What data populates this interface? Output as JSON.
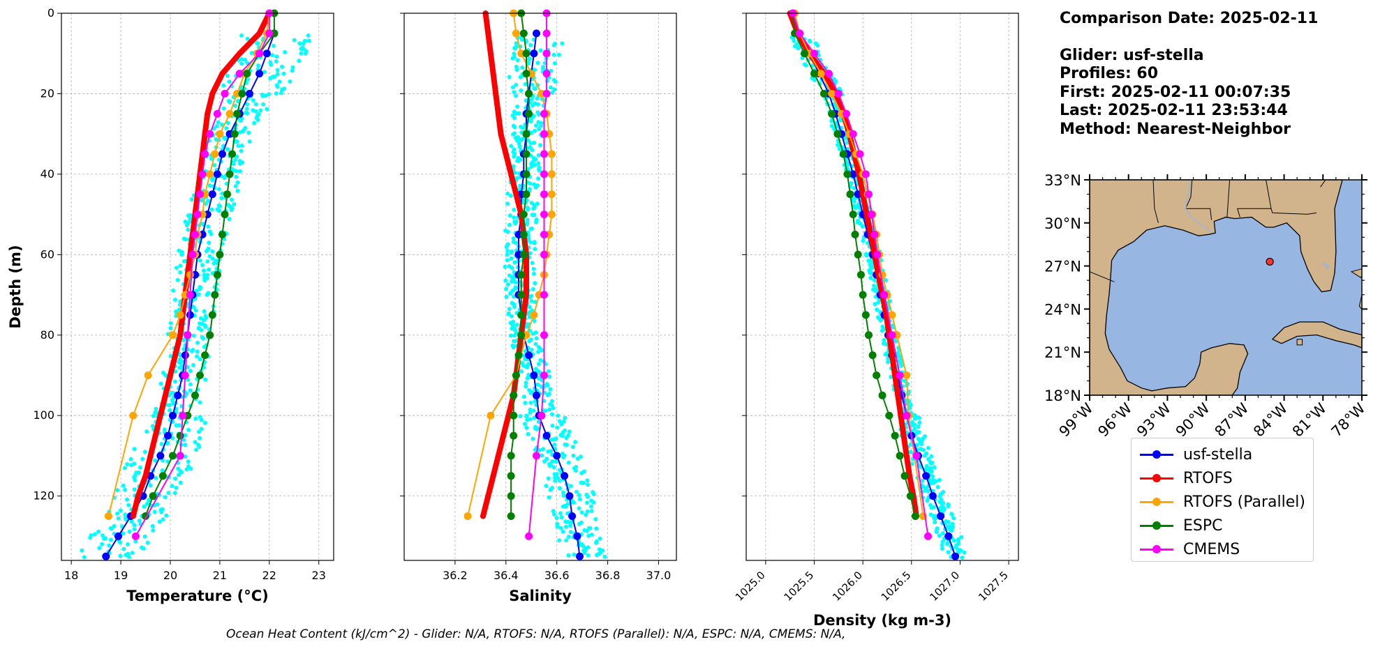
{
  "chart_data": [
    {
      "type": "line",
      "xlabel": "Temperature (°C)",
      "ylabel": "Depth (m)",
      "xlim": [
        17.8,
        23.3
      ],
      "ylim": [
        136,
        0
      ],
      "xticks": [
        "18",
        "19",
        "20",
        "21",
        "22",
        "23"
      ],
      "yticks": [
        "0",
        "20",
        "40",
        "60",
        "80",
        "100",
        "120"
      ],
      "grid": true,
      "series": [
        {
          "name": "usf-stella",
          "color": "#0000ff",
          "depth": [
            5,
            10,
            15,
            20,
            25,
            30,
            35,
            40,
            45,
            50,
            55,
            60,
            65,
            70,
            75,
            80,
            85,
            90,
            95,
            100,
            105,
            110,
            115,
            120,
            125,
            130,
            135
          ],
          "values": [
            22.1,
            21.95,
            21.8,
            21.6,
            21.4,
            21.2,
            21.05,
            20.95,
            20.85,
            20.75,
            20.65,
            20.55,
            20.5,
            20.45,
            20.4,
            20.35,
            20.3,
            20.25,
            20.15,
            20.05,
            19.95,
            19.8,
            19.6,
            19.45,
            19.2,
            18.95,
            18.7
          ]
        },
        {
          "name": "RTOFS",
          "color": "#ff0000",
          "depth": [
            0,
            5,
            10,
            15,
            20,
            25,
            30,
            35,
            40,
            45,
            50,
            55,
            60,
            65,
            70,
            75,
            80,
            85,
            90,
            95,
            100,
            105,
            110,
            115,
            120,
            125
          ],
          "values": [
            22.0,
            21.8,
            21.4,
            21.05,
            20.85,
            20.75,
            20.7,
            20.65,
            20.6,
            20.55,
            20.5,
            20.45,
            20.4,
            20.35,
            20.3,
            20.25,
            20.2,
            20.1,
            20.0,
            19.9,
            19.8,
            19.7,
            19.6,
            19.5,
            19.35,
            19.25
          ]
        },
        {
          "name": "RTOFS (Parallel)",
          "color": "#ffa500",
          "depth": [
            0,
            5,
            10,
            15,
            20,
            25,
            30,
            35,
            40,
            45,
            50,
            55,
            60,
            65,
            70,
            75,
            80,
            90,
            100,
            125
          ],
          "values": [
            22.0,
            21.95,
            21.75,
            21.5,
            21.35,
            21.2,
            21.0,
            20.9,
            20.8,
            20.7,
            20.65,
            20.55,
            20.5,
            20.4,
            20.3,
            20.2,
            20.05,
            19.55,
            19.25,
            18.75
          ]
        },
        {
          "name": "ESPC",
          "color": "#008000",
          "depth": [
            0,
            5,
            10,
            15,
            20,
            25,
            30,
            35,
            40,
            45,
            50,
            55,
            60,
            65,
            70,
            75,
            80,
            85,
            90,
            95,
            100,
            105,
            110,
            115,
            120,
            125
          ],
          "values": [
            22.1,
            22.1,
            21.8,
            21.55,
            21.45,
            21.35,
            21.3,
            21.25,
            21.2,
            21.15,
            21.1,
            21.05,
            21.0,
            20.95,
            20.9,
            20.85,
            20.8,
            20.7,
            20.6,
            20.5,
            20.35,
            20.2,
            20.05,
            19.85,
            19.65,
            19.5
          ]
        },
        {
          "name": "CMEMS",
          "color": "#ff00ff",
          "depth": [
            0,
            5,
            10,
            15,
            20,
            25,
            30,
            35,
            40,
            45,
            50,
            55,
            60,
            70,
            80,
            90,
            100,
            110,
            130
          ],
          "values": [
            22.0,
            22.0,
            21.8,
            21.4,
            21.1,
            20.95,
            20.8,
            20.7,
            20.65,
            20.6,
            20.55,
            20.5,
            20.45,
            20.4,
            20.35,
            20.3,
            20.25,
            20.2,
            19.3
          ]
        }
      ]
    },
    {
      "type": "line",
      "xlabel": "Salinity",
      "xlim": [
        36.0,
        37.07
      ],
      "ylim": [
        136,
        0
      ],
      "xticks": [
        "36.2",
        "36.4",
        "36.6",
        "36.8",
        "37.0"
      ],
      "grid": true,
      "series": [
        {
          "name": "usf-stella",
          "color": "#0000ff",
          "depth": [
            5,
            10,
            15,
            20,
            25,
            30,
            35,
            40,
            45,
            50,
            55,
            60,
            65,
            70,
            75,
            80,
            85,
            90,
            95,
            100,
            105,
            110,
            115,
            120,
            125,
            130,
            135
          ],
          "values": [
            36.52,
            36.51,
            36.5,
            36.49,
            36.48,
            36.48,
            36.47,
            36.47,
            36.46,
            36.46,
            36.45,
            36.45,
            36.45,
            36.45,
            36.46,
            36.47,
            36.49,
            36.51,
            36.52,
            36.53,
            36.56,
            36.6,
            36.63,
            36.65,
            36.66,
            36.68,
            36.69
          ]
        },
        {
          "name": "RTOFS",
          "color": "#ff0000",
          "depth": [
            0,
            5,
            10,
            15,
            20,
            25,
            30,
            35,
            40,
            45,
            50,
            55,
            60,
            65,
            70,
            75,
            80,
            85,
            90,
            95,
            100,
            105,
            110,
            115,
            120,
            125
          ],
          "values": [
            36.32,
            36.33,
            36.34,
            36.35,
            36.36,
            36.37,
            36.38,
            36.4,
            36.42,
            36.44,
            36.46,
            36.47,
            36.48,
            36.48,
            36.48,
            36.47,
            36.46,
            36.45,
            36.44,
            36.43,
            36.41,
            36.39,
            36.37,
            36.35,
            36.33,
            36.31
          ]
        },
        {
          "name": "RTOFS (Parallel)",
          "color": "#ffa500",
          "depth": [
            0,
            5,
            10,
            15,
            20,
            25,
            30,
            35,
            40,
            45,
            50,
            55,
            60,
            65,
            70,
            75,
            80,
            90,
            100,
            125
          ],
          "values": [
            36.43,
            36.44,
            36.46,
            36.5,
            36.54,
            36.56,
            36.57,
            36.58,
            36.58,
            36.58,
            36.58,
            36.57,
            36.56,
            36.55,
            36.53,
            36.51,
            36.48,
            36.44,
            36.34,
            36.25
          ]
        },
        {
          "name": "ESPC",
          "color": "#008000",
          "depth": [
            0,
            5,
            10,
            15,
            20,
            25,
            30,
            35,
            40,
            45,
            50,
            55,
            60,
            65,
            70,
            75,
            80,
            85,
            90,
            95,
            100,
            105,
            110,
            115,
            120,
            125
          ],
          "values": [
            36.46,
            36.47,
            36.48,
            36.48,
            36.49,
            36.49,
            36.48,
            36.48,
            36.48,
            36.48,
            36.47,
            36.47,
            36.47,
            36.46,
            36.46,
            36.46,
            36.46,
            36.45,
            36.44,
            36.43,
            36.43,
            36.43,
            36.42,
            36.42,
            36.42,
            36.42
          ]
        },
        {
          "name": "CMEMS",
          "color": "#ff00ff",
          "depth": [
            0,
            5,
            10,
            15,
            20,
            25,
            30,
            35,
            40,
            45,
            50,
            55,
            60,
            70,
            80,
            90,
            100,
            110,
            130
          ],
          "values": [
            36.56,
            36.56,
            36.56,
            36.56,
            36.56,
            36.55,
            36.55,
            36.55,
            36.55,
            36.55,
            36.55,
            36.55,
            36.55,
            36.55,
            36.55,
            36.55,
            36.54,
            36.52,
            36.49
          ]
        }
      ]
    },
    {
      "type": "line",
      "xlabel": "Density (kg m-3)",
      "xlim": [
        1024.8,
        1027.6
      ],
      "ylim": [
        136,
        0
      ],
      "xticks": [
        "1025.0",
        "1025.5",
        "1026.0",
        "1026.5",
        "1027.0",
        "1027.5"
      ],
      "grid": true,
      "series": [
        {
          "name": "usf-stella",
          "color": "#0000ff",
          "depth": [
            5,
            10,
            15,
            20,
            25,
            30,
            35,
            40,
            45,
            50,
            55,
            60,
            65,
            70,
            75,
            80,
            85,
            90,
            95,
            100,
            105,
            110,
            115,
            120,
            125,
            130,
            135
          ],
          "values": [
            1025.35,
            1025.45,
            1025.55,
            1025.65,
            1025.72,
            1025.78,
            1025.84,
            1025.9,
            1025.95,
            1026.0,
            1026.05,
            1026.1,
            1026.14,
            1026.18,
            1026.22,
            1026.26,
            1026.3,
            1026.36,
            1026.4,
            1026.45,
            1026.5,
            1026.57,
            1026.65,
            1026.72,
            1026.8,
            1026.88,
            1026.95
          ]
        },
        {
          "name": "RTOFS",
          "color": "#ff0000",
          "depth": [
            0,
            5,
            10,
            15,
            20,
            25,
            30,
            35,
            40,
            45,
            50,
            55,
            60,
            65,
            70,
            75,
            80,
            85,
            90,
            95,
            100,
            105,
            110,
            115,
            120,
            125
          ],
          "values": [
            1025.25,
            1025.33,
            1025.45,
            1025.6,
            1025.72,
            1025.8,
            1025.86,
            1025.91,
            1025.96,
            1026.0,
            1026.04,
            1026.08,
            1026.12,
            1026.16,
            1026.2,
            1026.24,
            1026.27,
            1026.3,
            1026.33,
            1026.36,
            1026.39,
            1026.42,
            1026.45,
            1026.48,
            1026.52,
            1026.55
          ]
        },
        {
          "name": "RTOFS (Parallel)",
          "color": "#ffa500",
          "depth": [
            0,
            5,
            10,
            15,
            20,
            25,
            30,
            35,
            40,
            45,
            50,
            55,
            60,
            65,
            70,
            75,
            80,
            90,
            100,
            125
          ],
          "values": [
            1025.3,
            1025.35,
            1025.45,
            1025.57,
            1025.68,
            1025.78,
            1025.86,
            1025.93,
            1026.0,
            1026.05,
            1026.1,
            1026.14,
            1026.17,
            1026.2,
            1026.25,
            1026.3,
            1026.35,
            1026.45,
            1026.47,
            1026.62
          ]
        },
        {
          "name": "ESPC",
          "color": "#008000",
          "depth": [
            0,
            5,
            10,
            15,
            20,
            25,
            30,
            35,
            40,
            45,
            50,
            55,
            60,
            65,
            70,
            75,
            80,
            85,
            90,
            95,
            100,
            105,
            110,
            115,
            120,
            125
          ],
          "values": [
            1025.28,
            1025.3,
            1025.4,
            1025.5,
            1025.6,
            1025.68,
            1025.74,
            1025.8,
            1025.84,
            1025.87,
            1025.9,
            1025.92,
            1025.95,
            1025.98,
            1026.0,
            1026.03,
            1026.06,
            1026.1,
            1026.14,
            1026.2,
            1026.27,
            1026.33,
            1026.38,
            1026.43,
            1026.49,
            1026.54
          ]
        },
        {
          "name": "CMEMS",
          "color": "#ff00ff",
          "depth": [
            0,
            5,
            10,
            15,
            20,
            25,
            30,
            35,
            40,
            45,
            50,
            55,
            60,
            70,
            80,
            90,
            100,
            110,
            130
          ],
          "values": [
            1025.28,
            1025.35,
            1025.5,
            1025.65,
            1025.75,
            1025.83,
            1025.9,
            1025.97,
            1026.03,
            1026.06,
            1026.09,
            1026.12,
            1026.15,
            1026.22,
            1026.3,
            1026.38,
            1026.45,
            1026.55,
            1026.67
          ]
        }
      ]
    },
    {
      "type": "map",
      "region": "Gulf of Mexico",
      "lon_ticks": [
        "99°W",
        "96°W",
        "93°W",
        "90°W",
        "87°W",
        "84°W",
        "81°W",
        "78°W"
      ],
      "lat_ticks": [
        "33°N",
        "30°N",
        "27°N",
        "24°N",
        "21°N",
        "18°N"
      ],
      "extent": [
        -99,
        -78,
        18,
        33
      ],
      "marker": {
        "lon": -85.1,
        "lat": 27.3,
        "color": "#ff3333"
      },
      "land_color": "#d2b48c",
      "water_color": "#97b6e1"
    }
  ],
  "glider_cloud_color": "#00ffff",
  "info": {
    "comparison_date": "Comparison Date: 2025-02-11",
    "glider": "Glider: usf-stella",
    "profiles": "Profiles: 60",
    "first": "First: 2025-02-11 00:07:35",
    "last": "Last: 2025-02-11 23:53:44",
    "method": "Method: Nearest-Neighbor"
  },
  "legend": [
    {
      "label": "usf-stella",
      "color": "#0000ff"
    },
    {
      "label": "RTOFS",
      "color": "#ff0000"
    },
    {
      "label": "RTOFS (Parallel)",
      "color": "#ffa500"
    },
    {
      "label": "ESPC",
      "color": "#008000"
    },
    {
      "label": "CMEMS",
      "color": "#ff00ff"
    }
  ],
  "footer": "Ocean Heat Content (kJ/cm^2) - Glider: N/A,  RTOFS: N/A,  RTOFS (Parallel): N/A,  ESPC: N/A,  CMEMS: N/A,"
}
